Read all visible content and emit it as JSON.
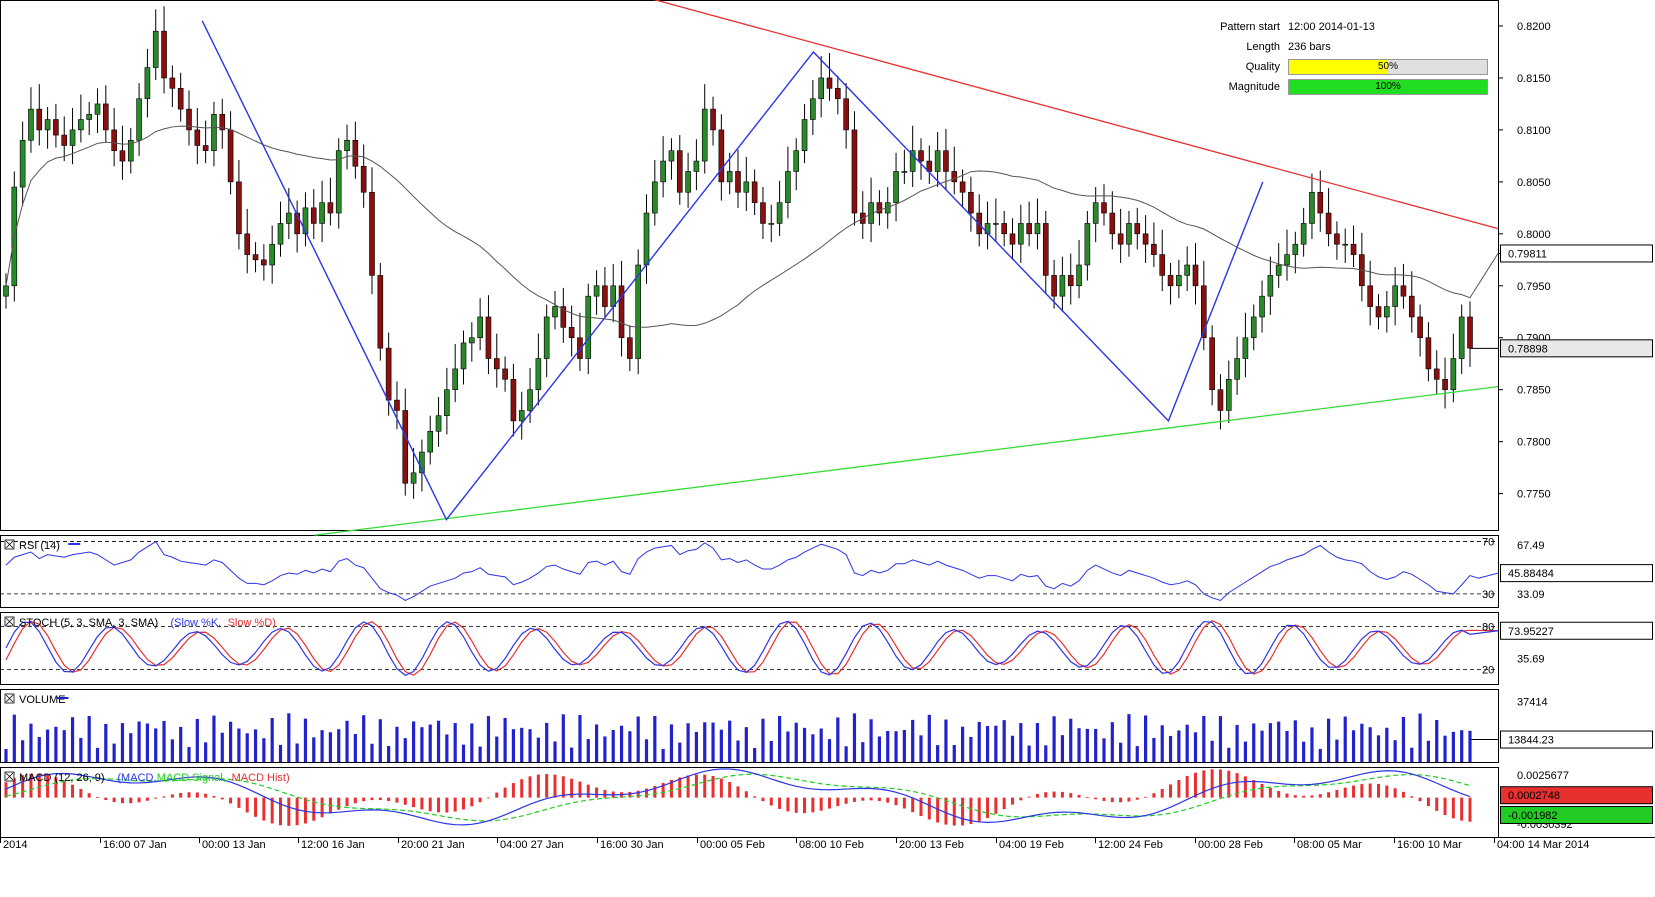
{
  "pattern": {
    "start_label": "Pattern start",
    "start_value": "12:00 2014-01-13",
    "length_label": "Length",
    "length_value": "236 bars",
    "quality_label": "Quality",
    "quality_value": "50%",
    "quality_fraction": 0.5,
    "magnitude_label": "Magnitude",
    "magnitude_value": "100%",
    "magnitude_fraction": 1.0
  },
  "colors": {
    "resistance": "#e83030",
    "support": "#33dd33",
    "zigzag": "#2b35e8",
    "ma": "#555555",
    "bull": "#2a8a2a",
    "bear": "#8a1010",
    "rsi": "#2b35e8",
    "stoch_k": "#2b35e8",
    "stoch_d": "#e83030",
    "volume": "#2222cc",
    "macd": "#2b35e8",
    "macd_signal": "#22cc22",
    "macd_hist": "#e83030",
    "quality_fill": "#ffff00",
    "magnitude_fill": "#22dd22"
  },
  "chart_data": {
    "type": "line",
    "x_ticks": [
      "2014",
      "16:00 07 Jan",
      "00:00 13 Jan",
      "12:00 16 Jan",
      "20:00 21 Jan",
      "04:00 27 Jan",
      "16:00 30 Jan",
      "00:00 05 Feb",
      "08:00 10 Feb",
      "20:00 13 Feb",
      "04:00 19 Feb",
      "12:00 24 Feb",
      "00:00 28 Feb",
      "08:00 05 Mar",
      "16:00 10 Mar",
      "04:00 14 Mar 2014"
    ],
    "main": {
      "y_ticks": [
        "0.8200",
        "0.8150",
        "0.8100",
        "0.8050",
        "0.8000",
        "0.7950",
        "0.7900",
        "0.7850",
        "0.7800",
        "0.7750"
      ],
      "ylim": [
        0.7715,
        0.8225
      ],
      "current_price": "0.78898",
      "current_price_value": 0.78898,
      "ma_value_label": "0.79811",
      "ma_value": 0.79811,
      "close_values": [
        0.795,
        0.8045,
        0.809,
        0.812,
        0.81,
        0.811,
        0.8095,
        0.8085,
        0.81,
        0.811,
        0.8115,
        0.8125,
        0.81,
        0.808,
        0.807,
        0.809,
        0.813,
        0.816,
        0.8195,
        0.815,
        0.814,
        0.812,
        0.81,
        0.8085,
        0.808,
        0.8115,
        0.81,
        0.805,
        0.8,
        0.798,
        0.7975,
        0.797,
        0.799,
        0.801,
        0.802,
        0.8,
        0.8025,
        0.801,
        0.803,
        0.802,
        0.808,
        0.809,
        0.8065,
        0.804,
        0.796,
        0.789,
        0.784,
        0.783,
        0.776,
        0.777,
        0.779,
        0.781,
        0.7825,
        0.785,
        0.787,
        0.7895,
        0.79,
        0.792,
        0.788,
        0.787,
        0.786,
        0.782,
        0.783,
        0.785,
        0.788,
        0.792,
        0.793,
        0.791,
        0.79,
        0.788,
        0.794,
        0.795,
        0.793,
        0.795,
        0.79,
        0.788,
        0.797,
        0.802,
        0.805,
        0.807,
        0.808,
        0.804,
        0.806,
        0.807,
        0.812,
        0.81,
        0.805,
        0.806,
        0.804,
        0.805,
        0.803,
        0.801,
        0.801,
        0.803,
        0.806,
        0.808,
        0.811,
        0.813,
        0.815,
        0.814,
        0.813,
        0.81,
        0.802,
        0.801,
        0.803,
        0.802,
        0.803,
        0.806,
        0.806,
        0.808,
        0.807,
        0.806,
        0.808,
        0.806,
        0.805,
        0.804,
        0.802,
        0.8,
        0.801,
        0.801,
        0.8,
        0.799,
        0.801,
        0.8,
        0.801,
        0.796,
        0.794,
        0.796,
        0.795,
        0.797,
        0.801,
        0.803,
        0.802,
        0.8,
        0.799,
        0.801,
        0.8,
        0.799,
        0.798,
        0.796,
        0.795,
        0.796,
        0.797,
        0.795,
        0.79,
        0.785,
        0.783,
        0.786,
        0.788,
        0.79,
        0.792,
        0.794,
        0.796,
        0.797,
        0.798,
        0.799,
        0.801,
        0.804,
        0.802,
        0.8,
        0.799,
        0.799,
        0.798,
        0.795,
        0.793,
        0.792,
        0.793,
        0.795,
        0.794,
        0.792,
        0.79,
        0.787,
        0.786,
        0.785,
        0.788,
        0.792,
        0.789
      ]
    },
    "zigzag_points": [
      [
        0.135,
        0.8205
      ],
      [
        0.298,
        0.7725
      ],
      [
        0.543,
        0.8175
      ],
      [
        0.78,
        0.782
      ],
      [
        0.843,
        0.805
      ]
    ],
    "resistance_line": [
      [
        0.43,
        0.8228
      ],
      [
        1.0,
        0.8005
      ]
    ],
    "support_line": [
      [
        0.21,
        0.771
      ],
      [
        1.0,
        0.7853
      ]
    ],
    "rsi": {
      "label": "RSI (14)",
      "levels": [
        "70",
        "30"
      ],
      "level_values": [
        70,
        30
      ],
      "right_label": "67.49",
      "current": "45.88484",
      "current_value": 45.88484,
      "under_label": "33.09",
      "ylim": [
        20,
        75
      ],
      "values": [
        52,
        58,
        60,
        62,
        57,
        60,
        59,
        58,
        60,
        61,
        62,
        60,
        56,
        52,
        54,
        56,
        62,
        66,
        70,
        60,
        58,
        55,
        54,
        53,
        52,
        56,
        54,
        48,
        42,
        38,
        38,
        37,
        40,
        44,
        46,
        45,
        48,
        46,
        49,
        47,
        55,
        57,
        52,
        50,
        42,
        34,
        31,
        29,
        25,
        28,
        32,
        36,
        38,
        40,
        42,
        46,
        47,
        50,
        45,
        44,
        43,
        37,
        39,
        42,
        46,
        51,
        52,
        49,
        47,
        45,
        54,
        55,
        52,
        55,
        47,
        45,
        57,
        62,
        65,
        66,
        67,
        60,
        63,
        64,
        69,
        65,
        56,
        57,
        54,
        56,
        52,
        49,
        49,
        52,
        56,
        58,
        62,
        65,
        68,
        66,
        64,
        60,
        46,
        44,
        48,
        46,
        48,
        53,
        53,
        56,
        54,
        52,
        55,
        52,
        50,
        48,
        45,
        42,
        44,
        44,
        42,
        40,
        45,
        43,
        44,
        36,
        34,
        38,
        36,
        40,
        48,
        52,
        49,
        46,
        44,
        48,
        46,
        44,
        42,
        39,
        37,
        38,
        40,
        37,
        30,
        27,
        25,
        31,
        35,
        39,
        43,
        47,
        51,
        53,
        56,
        58,
        60,
        64,
        67,
        62,
        58,
        56,
        55,
        53,
        47,
        43,
        41,
        43,
        47,
        45,
        41,
        37,
        32,
        31,
        30,
        37,
        44,
        42
      ]
    },
    "stoch": {
      "label": "STOCH (5, 3, SMA, 3, SMA)",
      "k_name": "Slow %K",
      "d_name": "Slow %D",
      "levels": [
        "80",
        "20"
      ],
      "level_values": [
        80,
        20
      ],
      "right_label": "35.69",
      "current": "73.95227",
      "current_value": 73.95227,
      "ylim": [
        0,
        100
      ]
    },
    "volume": {
      "label": "VOLUME",
      "right_label": "37414",
      "current": "13844.23",
      "current_value": 13844.23,
      "ylim": [
        0,
        45000
      ]
    },
    "macd": {
      "label": "MACD (12, 26, 9)",
      "macd_name": "MACD",
      "signal_name": "MACD Signal",
      "hist_name": "MACD Hist",
      "right_label": "0.0025677",
      "current": "0.0002748",
      "current_value": 0.0002748,
      "signal_current": "-0.001982",
      "signal_value": -0.001982,
      "under_label": "-0.0030392",
      "ylim": [
        -0.0045,
        0.0035
      ]
    }
  }
}
